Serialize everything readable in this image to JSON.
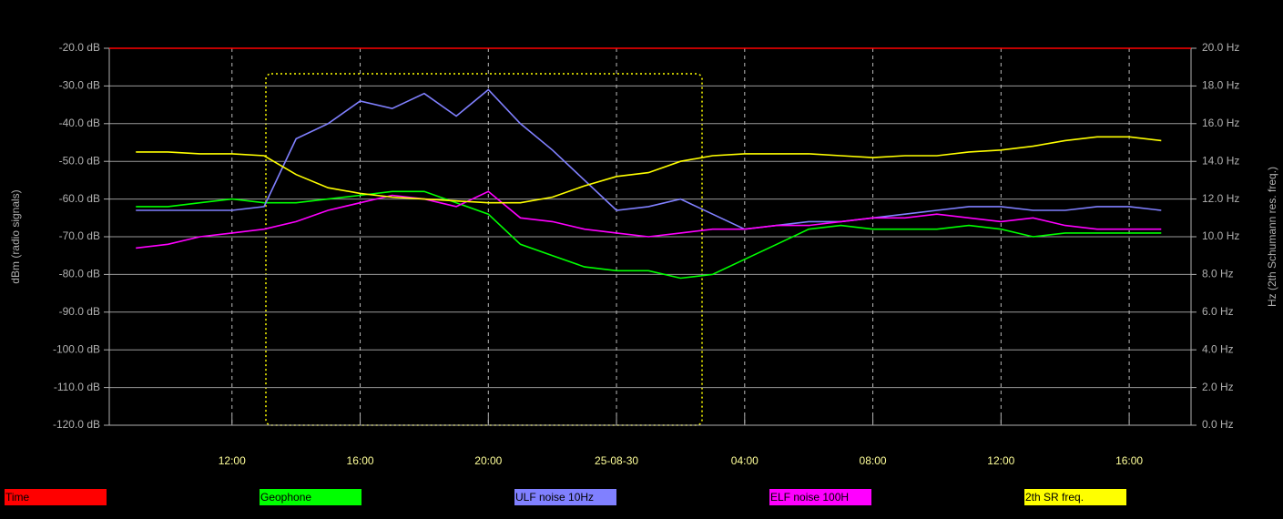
{
  "chart_data": {
    "type": "line",
    "y_label": "dBm (radio signals)",
    "y2_label": "Hz (2th Schumann res. freq.)",
    "time_line": {
      "name": "Time",
      "color": "#ff0000"
    },
    "x": [
      9,
      10,
      11,
      12,
      13,
      14,
      15,
      16,
      17,
      18,
      19,
      20,
      21,
      22,
      23,
      24,
      25,
      26,
      27,
      28,
      29,
      30,
      31,
      32,
      33,
      34,
      35,
      36,
      37,
      38,
      39,
      40,
      41
    ],
    "xlim": [
      8.17,
      41.93
    ],
    "xticks": [
      {
        "value": 12,
        "label": "12:00"
      },
      {
        "value": 16,
        "label": "16:00"
      },
      {
        "value": 20,
        "label": "20:00"
      },
      {
        "value": 24,
        "label": "25-08-30"
      },
      {
        "value": 28,
        "label": "04:00"
      },
      {
        "value": 32,
        "label": "08:00"
      },
      {
        "value": 36,
        "label": "12:00"
      },
      {
        "value": 40,
        "label": "16:00"
      }
    ],
    "ylim": [
      -120,
      -20
    ],
    "yticks": [
      {
        "value": -120,
        "label": "-120.0 dB"
      },
      {
        "value": -110,
        "label": "-110.0 dB"
      },
      {
        "value": -100,
        "label": "-100.0 dB"
      },
      {
        "value": -90,
        "label": "-90.0 dB"
      },
      {
        "value": -80,
        "label": "-80.0 dB"
      },
      {
        "value": -70,
        "label": "-70.0 dB"
      },
      {
        "value": -60,
        "label": "-60.0 dB"
      },
      {
        "value": -50,
        "label": "-50.0 dB"
      },
      {
        "value": -40,
        "label": "-40.0 dB"
      },
      {
        "value": -30,
        "label": "-30.0 dB"
      },
      {
        "value": -20,
        "label": "-20.0 dB"
      }
    ],
    "y2lim": [
      0,
      20
    ],
    "y2ticks": [
      {
        "value": 0,
        "label": "0.0 Hz"
      },
      {
        "value": 2,
        "label": "2.0 Hz"
      },
      {
        "value": 4,
        "label": "4.0 Hz"
      },
      {
        "value": 6,
        "label": "6.0 Hz"
      },
      {
        "value": 8,
        "label": "8.0 Hz"
      },
      {
        "value": 10,
        "label": "10.0 Hz"
      },
      {
        "value": 12,
        "label": "12.0 Hz"
      },
      {
        "value": 14,
        "label": "14.0 Hz"
      },
      {
        "value": 16,
        "label": "16.0 Hz"
      },
      {
        "value": 18,
        "label": "18.0 Hz"
      },
      {
        "value": 20,
        "label": "20.0 Hz"
      }
    ],
    "grid": true,
    "series": [
      {
        "name": "Geophone",
        "color": "#00ff00",
        "values": [
          -62,
          -62,
          -61,
          -60,
          -61,
          -61,
          -60,
          -59,
          -58,
          -58,
          -61,
          -64,
          -72,
          -75,
          -78,
          -79,
          -79,
          -81,
          -80,
          -76,
          -72,
          -68,
          -67,
          -68,
          -68,
          -68,
          -67,
          -68,
          -70,
          -69,
          -69,
          -69,
          -69
        ]
      },
      {
        "name": "ULF noise 10Hz",
        "color": "#8080ff",
        "values": [
          -63,
          -63,
          -63,
          -63,
          -62,
          -44,
          -40,
          -34,
          -36,
          -32,
          -38,
          -31,
          -40,
          -47,
          -55,
          -63,
          -62,
          -60,
          -64,
          -68,
          -67,
          -66,
          -66,
          -65,
          -64,
          -63,
          -62,
          -62,
          -63,
          -63,
          -62,
          -62,
          -63
        ]
      },
      {
        "name": "ELF noise 100H",
        "color": "#ff00ff",
        "values": [
          -73,
          -72,
          -70,
          -69,
          -68,
          -66,
          -63,
          -61,
          -59,
          -60,
          -62,
          -58,
          -65,
          -66,
          -68,
          -69,
          -70,
          -69,
          -68,
          -68,
          -67,
          -67,
          -66,
          -65,
          -65,
          -64,
          -65,
          -66,
          -65,
          -67,
          -68,
          -68,
          -68
        ]
      },
      {
        "name": "2th SR freq.",
        "color": "#ffff00",
        "axis": "y2",
        "values": [
          14.5,
          14.5,
          14.4,
          14.4,
          14.3,
          13.3,
          12.6,
          12.3,
          12.1,
          12.0,
          11.9,
          11.8,
          11.8,
          12.1,
          12.7,
          13.2,
          13.4,
          14.0,
          14.3,
          14.4,
          14.4,
          14.4,
          14.3,
          14.2,
          14.3,
          14.3,
          14.5,
          14.6,
          14.8,
          15.1,
          15.3,
          15.3,
          15.1
        ]
      }
    ]
  }
}
